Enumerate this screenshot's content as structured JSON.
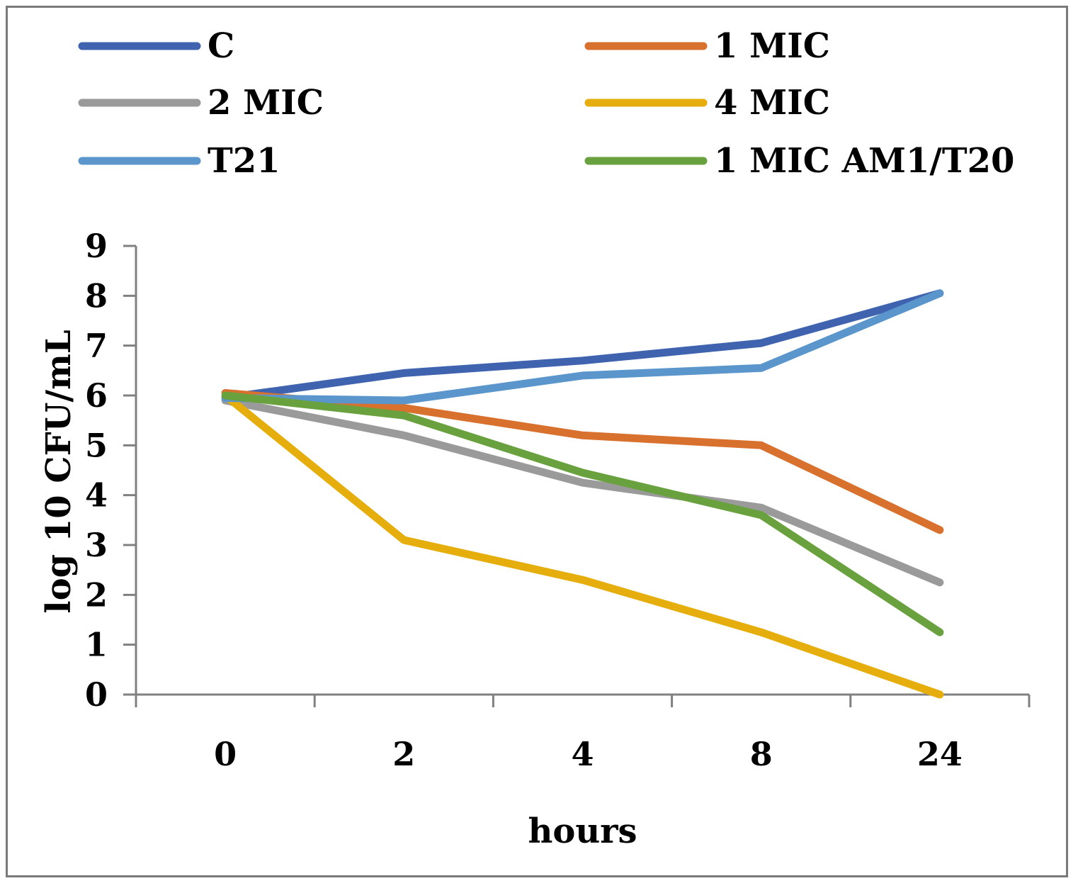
{
  "chart_data": {
    "type": "line",
    "title": "",
    "xlabel": "hours",
    "ylabel": "log 10 CFU/mL",
    "categories": [
      "0",
      "2",
      "4",
      "8",
      "24"
    ],
    "ylim": [
      0,
      9
    ],
    "yticks": [
      "0",
      "1",
      "2",
      "3",
      "4",
      "5",
      "6",
      "7",
      "8",
      "9"
    ],
    "grid": false,
    "legend_position": "top",
    "series": [
      {
        "name": "C",
        "color": "#3f63ae",
        "values": [
          5.95,
          6.45,
          6.7,
          7.05,
          8.05
        ]
      },
      {
        "name": "1 MIC",
        "color": "#d8702e",
        "values": [
          6.05,
          5.75,
          5.2,
          5.0,
          3.3
        ]
      },
      {
        "name": "2 MIC",
        "color": "#9a9a9a",
        "values": [
          5.9,
          5.2,
          4.25,
          3.75,
          2.25
        ]
      },
      {
        "name": "4 MIC",
        "color": "#e5ae0c",
        "values": [
          6.0,
          3.1,
          2.3,
          1.25,
          0.0
        ]
      },
      {
        "name": "T21",
        "color": "#5a95cc",
        "values": [
          5.95,
          5.9,
          6.4,
          6.55,
          8.05
        ]
      },
      {
        "name": "1 MIC AM1/T20",
        "color": "#69a13f",
        "values": [
          6.0,
          5.6,
          4.45,
          3.6,
          1.25
        ]
      }
    ]
  }
}
